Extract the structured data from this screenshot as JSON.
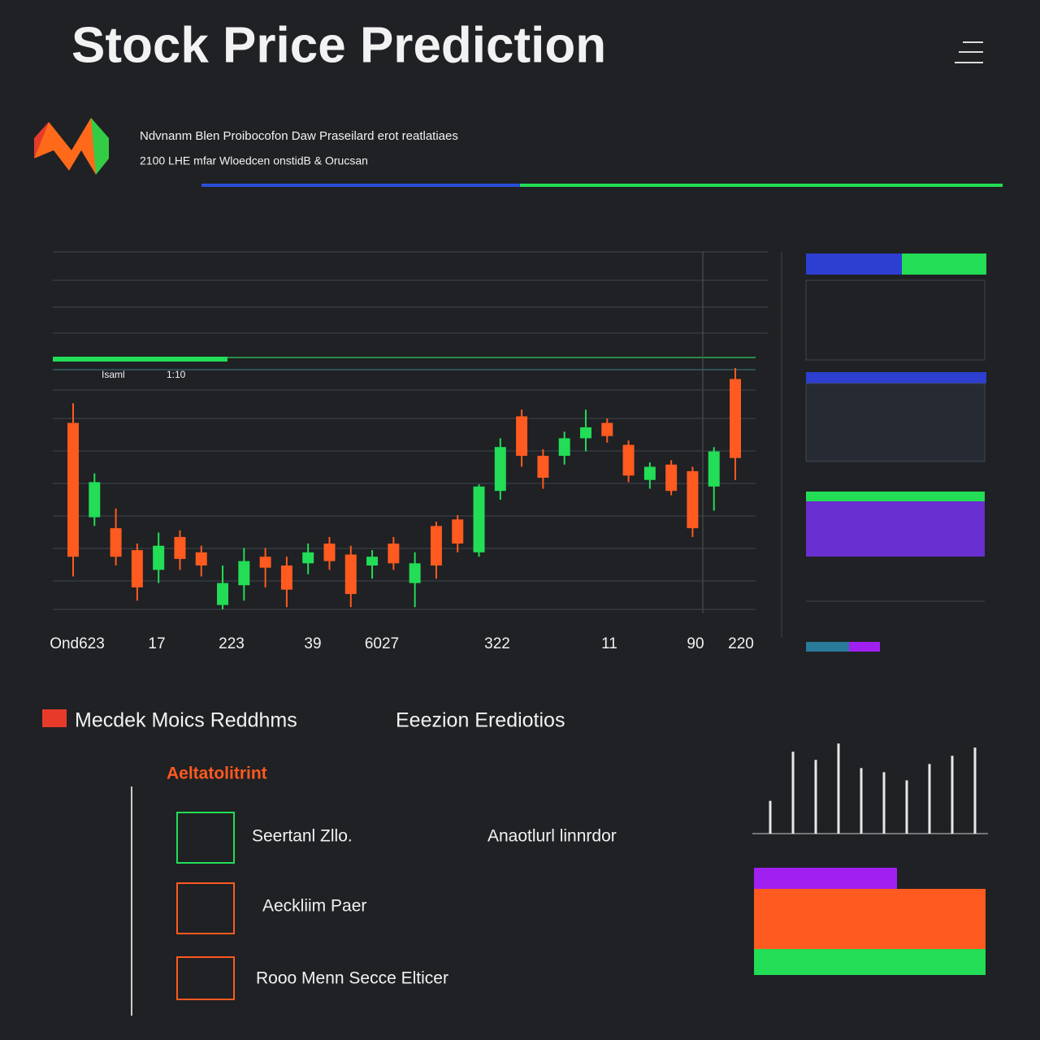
{
  "header": {
    "title": "Stock Price Prediction"
  },
  "summary": {
    "line1": "Ndvnanm Blen Proibocofon Daw Praseilard erot reatlatiaes",
    "line2": "2100 LHE mfar Wloedcen onstidB & Orucsan"
  },
  "legend": {
    "left": "Isaml",
    "right": "1:10"
  },
  "chart_data": [
    {
      "type": "candlestick",
      "x_labels": [
        "Ond623",
        "17",
        "223",
        "39",
        "6027",
        "322",
        "11",
        "90",
        "220"
      ],
      "ylim": [
        0,
        110
      ],
      "colors": {
        "up": "#22dd55",
        "down": "#ff5a1f"
      },
      "candles": [
        {
          "open": 85,
          "high": 94,
          "low": 15,
          "close": 24
        },
        {
          "open": 42,
          "high": 62,
          "low": 38,
          "close": 58
        },
        {
          "open": 37,
          "high": 46,
          "low": 20,
          "close": 24
        },
        {
          "open": 27,
          "high": 30,
          "low": 4,
          "close": 10
        },
        {
          "open": 18,
          "high": 35,
          "low": 12,
          "close": 29
        },
        {
          "open": 33,
          "high": 36,
          "low": 18,
          "close": 23
        },
        {
          "open": 26,
          "high": 29,
          "low": 15,
          "close": 20
        },
        {
          "open": 2,
          "high": 20,
          "low": 0,
          "close": 12
        },
        {
          "open": 11,
          "high": 28,
          "low": 4,
          "close": 22
        },
        {
          "open": 24,
          "high": 28,
          "low": 10,
          "close": 19
        },
        {
          "open": 20,
          "high": 24,
          "low": 1,
          "close": 9
        },
        {
          "open": 21,
          "high": 30,
          "low": 16,
          "close": 26
        },
        {
          "open": 30,
          "high": 33,
          "low": 18,
          "close": 22
        },
        {
          "open": 25,
          "high": 29,
          "low": 1,
          "close": 7
        },
        {
          "open": 20,
          "high": 27,
          "low": 14,
          "close": 24
        },
        {
          "open": 30,
          "high": 33,
          "low": 18,
          "close": 21
        },
        {
          "open": 12,
          "high": 26,
          "low": 1,
          "close": 21
        },
        {
          "open": 38,
          "high": 40,
          "low": 14,
          "close": 20
        },
        {
          "open": 41,
          "high": 43,
          "low": 26,
          "close": 30
        },
        {
          "open": 26,
          "high": 57,
          "low": 24,
          "close": 56
        },
        {
          "open": 54,
          "high": 78,
          "low": 50,
          "close": 74
        },
        {
          "open": 88,
          "high": 91,
          "low": 65,
          "close": 70
        },
        {
          "open": 70,
          "high": 73,
          "low": 55,
          "close": 60
        },
        {
          "open": 70,
          "high": 81,
          "low": 66,
          "close": 78
        },
        {
          "open": 78,
          "high": 91,
          "low": 72,
          "close": 83
        },
        {
          "open": 85,
          "high": 87,
          "low": 76,
          "close": 79
        },
        {
          "open": 75,
          "high": 77,
          "low": 58,
          "close": 61
        },
        {
          "open": 59,
          "high": 67,
          "low": 55,
          "close": 65
        },
        {
          "open": 66,
          "high": 68,
          "low": 52,
          "close": 54
        },
        {
          "open": 63,
          "high": 65,
          "low": 33,
          "close": 37
        },
        {
          "open": 56,
          "high": 74,
          "low": 45,
          "close": 72
        },
        {
          "open": 105,
          "high": 110,
          "low": 59,
          "close": 69
        }
      ]
    },
    {
      "type": "bar",
      "values": [
        40,
        100,
        90,
        110,
        80,
        75,
        65,
        85,
        95,
        105
      ],
      "ylim": [
        0,
        120
      ],
      "color": "#e8e8e8"
    }
  ],
  "sections": {
    "left": "Mecdek Moics Reddhms",
    "right": "Eeezion Erediotios",
    "sub": "Aeltatolitrint"
  },
  "features": [
    "Seertanl Zllo.",
    "Anaotlurl linnrdor",
    "Aeckliim Paer",
    "Rooo Menn Secce Elticer"
  ]
}
